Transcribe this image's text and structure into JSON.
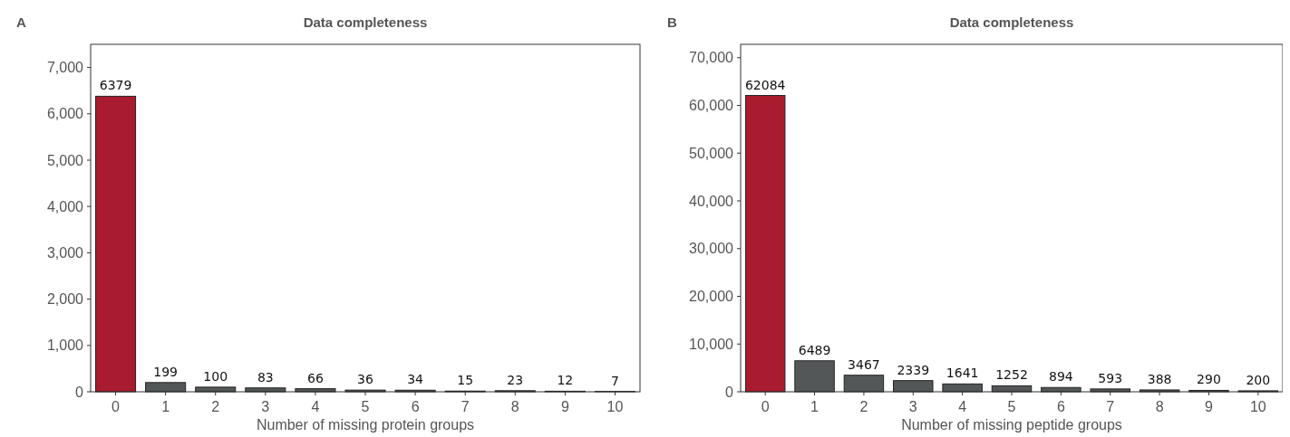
{
  "chart_data": [
    {
      "type": "bar",
      "title": "Data completeness",
      "xlabel": "Number of missing protein groups",
      "annotations": [
        "A"
      ],
      "categories": [
        "0",
        "1",
        "2",
        "3",
        "4",
        "5",
        "6",
        "7",
        "8",
        "9",
        "10"
      ],
      "values": [
        6379,
        199,
        100,
        83,
        66,
        36,
        34,
        15,
        23,
        12,
        7
      ],
      "colors": [
        "#a91b2e",
        "#545758",
        "#545758",
        "#545758",
        "#545758",
        "#545758",
        "#545758",
        "#545758",
        "#545758",
        "#545758",
        "#545758"
      ],
      "ylim": [
        0,
        7500
      ],
      "yticks": [
        {
          "value": 0,
          "label": "0"
        },
        {
          "value": 1000,
          "label": "1,000"
        },
        {
          "value": 2000,
          "label": "2,000"
        },
        {
          "value": 3000,
          "label": "3,000"
        },
        {
          "value": 4000,
          "label": "4,000"
        },
        {
          "value": 5000,
          "label": "5,000"
        },
        {
          "value": 6000,
          "label": "6,000"
        },
        {
          "value": 7000,
          "label": "7,000"
        }
      ],
      "data_labels": true,
      "grid": false
    },
    {
      "type": "bar",
      "title": "Data completeness",
      "xlabel": "Number of missing peptide groups",
      "annotations": [
        "B"
      ],
      "categories": [
        "0",
        "1",
        "2",
        "3",
        "4",
        "5",
        "6",
        "7",
        "8",
        "9",
        "10"
      ],
      "values": [
        62084,
        6489,
        3467,
        2339,
        1641,
        1252,
        894,
        593,
        388,
        290,
        200
      ],
      "colors": [
        "#a91b2e",
        "#545758",
        "#545758",
        "#545758",
        "#545758",
        "#545758",
        "#545758",
        "#545758",
        "#545758",
        "#545758",
        "#545758"
      ],
      "ylim": [
        0,
        72800
      ],
      "yticks": [
        {
          "value": 0,
          "label": "0"
        },
        {
          "value": 10000,
          "label": "10,000"
        },
        {
          "value": 20000,
          "label": "20,000"
        },
        {
          "value": 30000,
          "label": "30,000"
        },
        {
          "value": 40000,
          "label": "40,000"
        },
        {
          "value": 50000,
          "label": "50,000"
        },
        {
          "value": 60000,
          "label": "60,000"
        },
        {
          "value": 70000,
          "label": "70,000"
        }
      ],
      "data_labels": true,
      "grid": false
    }
  ]
}
